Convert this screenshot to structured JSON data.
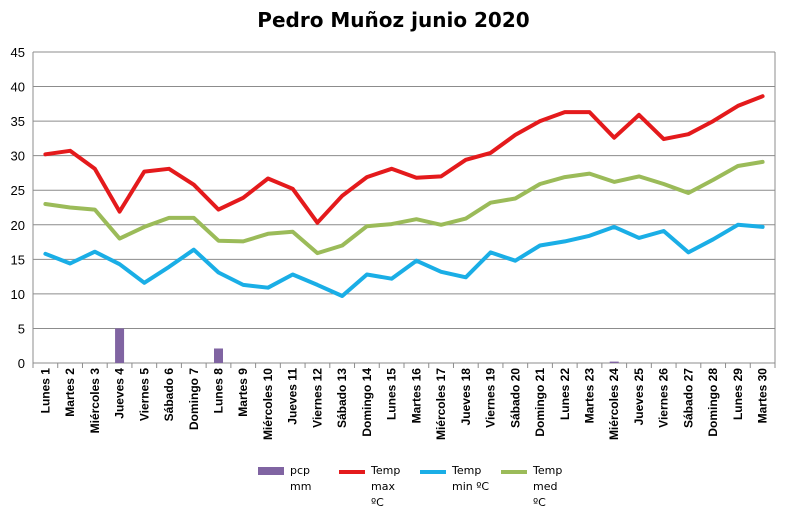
{
  "chart_data": {
    "type": "line",
    "title": "Pedro Muñoz junio 2020",
    "categories": [
      "Lunes 1",
      "Martes 2",
      "Miércoles 3",
      "Jueves 4",
      "Viernes 5",
      "Sábado 6",
      "Domingo 7",
      "Lunes 8",
      "Martes 9",
      "Miércoles 10",
      "Jueves 11",
      "Viernes 12",
      "Sábado 13",
      "Domingo 14",
      "Lunes 15",
      "Martes 16",
      "Miércoles 17",
      "Jueves 18",
      "Viernes 19",
      "Sábado 20",
      "Domingo 21",
      "Lunes 22",
      "Martes 23",
      "Miércoles 24",
      "Jueves 25",
      "Viernes 26",
      "Sábado 27",
      "Domingo 28",
      "Lunes 29",
      "Martes 30"
    ],
    "ylim": [
      0,
      45
    ],
    "yticks": [
      0,
      5,
      10,
      15,
      20,
      25,
      30,
      35,
      40,
      45
    ],
    "grid": true,
    "legend_position": "bottom",
    "series": [
      {
        "name": "pcp mm",
        "type": "bar",
        "color": "#8064A2",
        "values": [
          0,
          0,
          0,
          5,
          0,
          0,
          0,
          2.1,
          0,
          0,
          0,
          0,
          0,
          0,
          0,
          0,
          0,
          0,
          0,
          0,
          0,
          0,
          0,
          0.2,
          0,
          0,
          0,
          0,
          0,
          0
        ]
      },
      {
        "name": "Temp max ºC",
        "type": "line",
        "color": "#E41A1C",
        "values": [
          30.2,
          30.7,
          28.1,
          21.9,
          27.7,
          28.1,
          25.8,
          22.2,
          23.9,
          26.7,
          25.2,
          20.3,
          24.2,
          26.9,
          28.1,
          26.8,
          27.0,
          29.4,
          30.4,
          33.0,
          35.0,
          36.3,
          36.3,
          32.6,
          35.9,
          32.4,
          33.1,
          35.0,
          37.2,
          38.6
        ]
      },
      {
        "name": "Temp min ºC",
        "type": "line",
        "color": "#1AAEE6",
        "values": [
          15.8,
          14.4,
          16.1,
          14.3,
          11.6,
          13.9,
          16.4,
          13.1,
          11.3,
          10.9,
          12.8,
          11.3,
          9.7,
          12.8,
          12.2,
          14.8,
          13.2,
          12.4,
          16.0,
          14.8,
          17.0,
          17.6,
          18.4,
          19.7,
          18.1,
          19.1,
          16.0,
          17.9,
          20.0,
          19.7
        ]
      },
      {
        "name": "Temp med ºC",
        "type": "line",
        "color": "#9BBB59",
        "values": [
          23.0,
          22.5,
          22.2,
          18.0,
          19.7,
          21.0,
          21.0,
          17.7,
          17.6,
          18.7,
          19.0,
          15.9,
          17.0,
          19.8,
          20.1,
          20.8,
          20.0,
          20.9,
          23.2,
          23.8,
          25.9,
          26.9,
          27.4,
          26.2,
          27.0,
          25.9,
          24.6,
          26.5,
          28.5,
          29.1
        ]
      }
    ]
  },
  "legend": [
    {
      "label": "pcp mm",
      "color": "#8064A2",
      "kind": "bar"
    },
    {
      "label": "Temp max ºC",
      "color": "#E41A1C",
      "kind": "line"
    },
    {
      "label": "Temp min ºC",
      "color": "#1AAEE6",
      "kind": "line"
    },
    {
      "label": "Temp med ºC",
      "color": "#9BBB59",
      "kind": "line"
    }
  ]
}
